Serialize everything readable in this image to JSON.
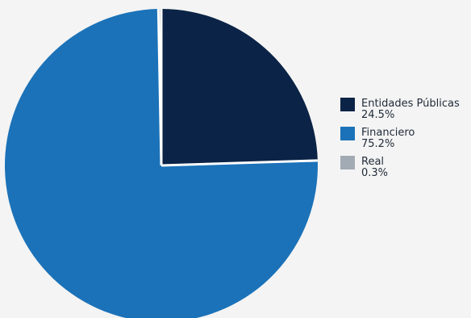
{
  "chart_data": {
    "type": "pie",
    "slices": [
      {
        "label": "Entidades Públicas",
        "value": 24.5,
        "display": "24.5%",
        "color": "#0b2346"
      },
      {
        "label": "Financiero",
        "value": 75.2,
        "display": "75.2%",
        "color": "#1b72b8"
      },
      {
        "label": "Real",
        "value": 0.3,
        "display": "0.3%",
        "color": "#a2aab3"
      }
    ],
    "legend_position": "right",
    "start_angle": "top",
    "direction": "clockwise",
    "background": "#f4f4f4",
    "separator_color": "#ffffff"
  }
}
